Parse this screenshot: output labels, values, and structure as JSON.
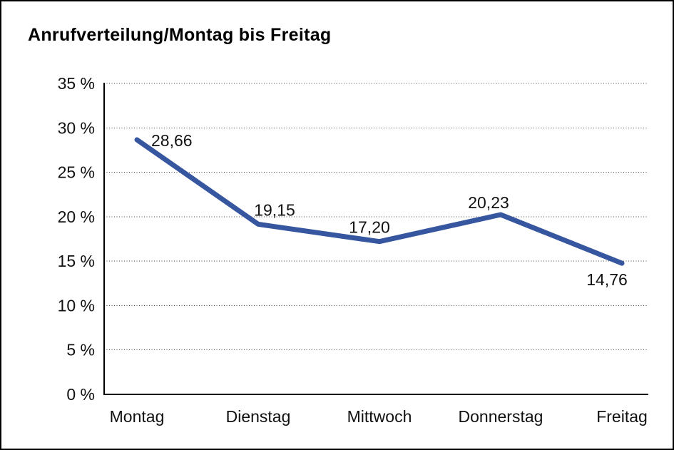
{
  "title": "Anrufverteilung/Montag bis Freitag",
  "colors": {
    "line": "#36569F",
    "grid": "#444444",
    "axis": "#000000",
    "text": "#111111",
    "background": "#ffffff",
    "border": "#000000"
  },
  "chart_data": {
    "type": "line",
    "title": "Anrufverteilung/Montag bis Freitag",
    "categories": [
      "Montag",
      "Dienstag",
      "Mittwoch",
      "Donnerstag",
      "Freitag"
    ],
    "values": [
      28.66,
      19.15,
      17.2,
      20.23,
      14.76
    ],
    "point_labels": [
      "28,66",
      "19,15",
      "17,20",
      "20,23",
      "14,76"
    ],
    "xlabel": "",
    "ylabel": "",
    "ylim": [
      0,
      35
    ],
    "ytick_step": 5,
    "ytick_labels": [
      "0 %",
      "5 %",
      "10 %",
      "15 %",
      "20 %",
      "25 %",
      "30 %",
      "35 %"
    ],
    "grid": "dotted-horizontal",
    "legend": "none"
  }
}
